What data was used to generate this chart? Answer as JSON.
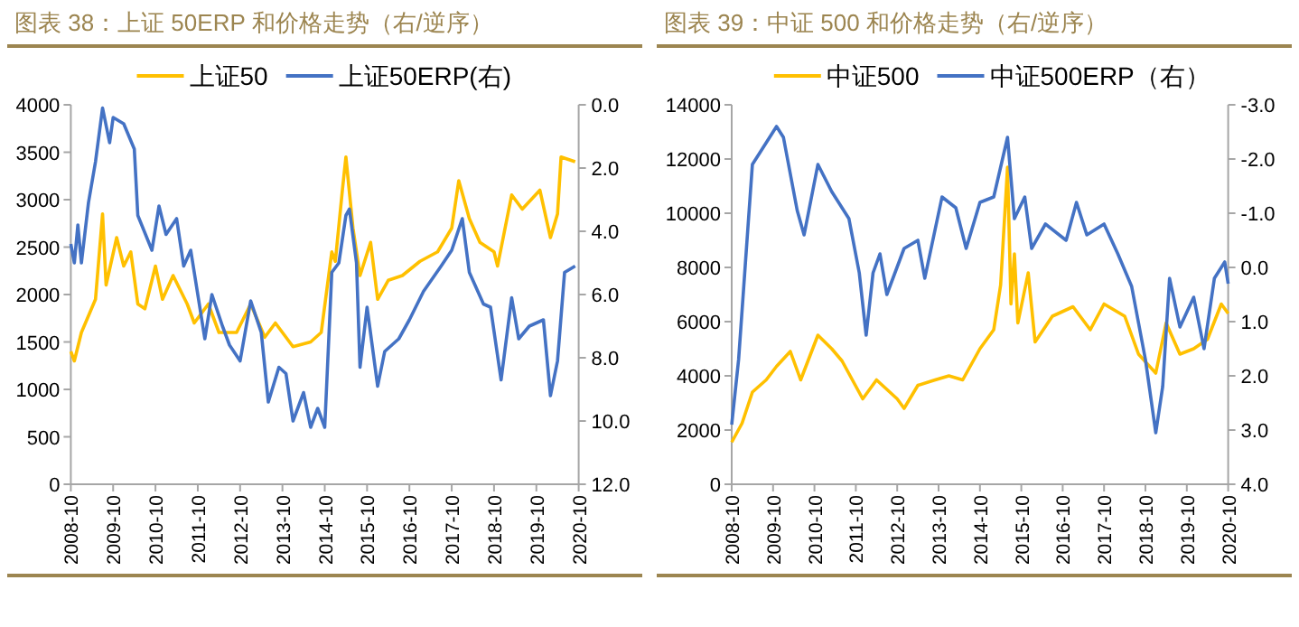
{
  "chart_data": [
    {
      "type": "line",
      "title": "图表 38：上证 50ERP 和价格走势（右/逆序）",
      "legend": "top",
      "grid": false,
      "xlim": [
        "2008-10",
        "2020-10"
      ],
      "xticks": [
        "2008-10",
        "2009-10",
        "2010-10",
        "2011-10",
        "2012-10",
        "2013-10",
        "2014-10",
        "2015-10",
        "2016-10",
        "2017-10",
        "2018-10",
        "2019-10",
        "2020-10"
      ],
      "ylim": [
        0,
        4000
      ],
      "yticks": [
        0,
        500,
        1000,
        1500,
        2000,
        2500,
        3000,
        3500,
        4000
      ],
      "y2lim": [
        12,
        0
      ],
      "y2ticks": [
        {
          "value": 0,
          "label": "0.0"
        },
        {
          "value": 2,
          "label": "2.0"
        },
        {
          "value": 4,
          "label": "4.0"
        },
        {
          "value": 6,
          "label": "6.0"
        },
        {
          "value": 8,
          "label": "8.0"
        },
        {
          "value": 10,
          "label": "10.0"
        },
        {
          "value": 12,
          "label": "12.0"
        }
      ],
      "series": [
        {
          "name": "上证50",
          "color": "#ffc000",
          "x": [
            "2008-10",
            "2008-11",
            "2009-01",
            "2009-05",
            "2009-07",
            "2009-08",
            "2009-11",
            "2010-01",
            "2010-03",
            "2010-05",
            "2010-07",
            "2010-10",
            "2010-12",
            "2011-03",
            "2011-07",
            "2011-09",
            "2012-01",
            "2012-04",
            "2012-09",
            "2013-01",
            "2013-05",
            "2013-08",
            "2014-01",
            "2014-06",
            "2014-09",
            "2014-12",
            "2015-01",
            "2015-03",
            "2015-04",
            "2015-06",
            "2015-08",
            "2015-11",
            "2016-01",
            "2016-04",
            "2016-08",
            "2017-01",
            "2017-06",
            "2017-10",
            "2017-12",
            "2018-03",
            "2018-06",
            "2018-10",
            "2018-11",
            "2019-03",
            "2019-06",
            "2019-11",
            "2020-02",
            "2020-04",
            "2020-05",
            "2020-09"
          ],
          "values": [
            1400,
            1300,
            1600,
            1950,
            2850,
            2100,
            2600,
            2300,
            2450,
            1900,
            1850,
            2300,
            1950,
            2200,
            1900,
            1700,
            1900,
            1600,
            1600,
            1900,
            1550,
            1700,
            1450,
            1500,
            1600,
            2450,
            2350,
            3100,
            3450,
            2700,
            2200,
            2550,
            1950,
            2150,
            2200,
            2350,
            2450,
            2700,
            3200,
            2800,
            2550,
            2450,
            2300,
            3050,
            2900,
            3100,
            2600,
            2850,
            3450,
            3400
          ]
        },
        {
          "name": "上证50ERP(右)",
          "color": "#4472c4",
          "axis": "y2",
          "x": [
            "2008-10",
            "2008-11",
            "2008-12",
            "2009-01",
            "2009-03",
            "2009-05",
            "2009-07",
            "2009-09",
            "2009-10",
            "2010-01",
            "2010-04",
            "2010-05",
            "2010-09",
            "2010-11",
            "2011-01",
            "2011-04",
            "2011-06",
            "2011-08",
            "2011-12",
            "2012-02",
            "2012-05",
            "2012-07",
            "2012-10",
            "2013-01",
            "2013-04",
            "2013-06",
            "2013-09",
            "2013-11",
            "2014-01",
            "2014-04",
            "2014-06",
            "2014-08",
            "2014-10",
            "2014-12",
            "2015-02",
            "2015-04",
            "2015-05",
            "2015-07",
            "2015-08",
            "2015-10",
            "2016-01",
            "2016-03",
            "2016-07",
            "2016-10",
            "2017-02",
            "2017-07",
            "2017-10",
            "2018-01",
            "2018-03",
            "2018-07",
            "2018-09",
            "2018-12",
            "2019-03",
            "2019-05",
            "2019-08",
            "2019-12",
            "2020-02",
            "2020-04",
            "2020-06",
            "2020-09"
          ],
          "values": [
            4.4,
            5.0,
            3.8,
            5.0,
            3.1,
            1.8,
            0.1,
            1.2,
            0.4,
            0.6,
            1.4,
            3.5,
            4.6,
            3.2,
            4.1,
            3.6,
            5.1,
            4.6,
            7.4,
            6.0,
            7.0,
            7.6,
            8.1,
            6.2,
            7.2,
            9.4,
            8.3,
            8.5,
            10.0,
            9.1,
            10.2,
            9.6,
            10.2,
            5.3,
            5.0,
            3.5,
            3.3,
            5.0,
            8.3,
            6.4,
            8.9,
            7.8,
            7.4,
            6.8,
            5.9,
            5.1,
            4.6,
            3.6,
            5.3,
            6.3,
            6.4,
            8.7,
            6.1,
            7.4,
            7.0,
            6.8,
            9.2,
            8.1,
            5.3,
            5.1
          ]
        }
      ]
    },
    {
      "type": "line",
      "title": "图表 39：中证 500 和价格走势（右/逆序）",
      "legend": "top",
      "grid": false,
      "xlim": [
        "2008-10",
        "2020-10"
      ],
      "xticks": [
        "2008-10",
        "2009-10",
        "2010-10",
        "2011-10",
        "2012-10",
        "2013-10",
        "2014-10",
        "2015-10",
        "2016-10",
        "2017-10",
        "2018-10",
        "2019-10",
        "2020-10"
      ],
      "ylim": [
        0,
        14000
      ],
      "yticks": [
        0,
        2000,
        4000,
        6000,
        8000,
        10000,
        12000,
        14000
      ],
      "y2lim": [
        4,
        -3
      ],
      "y2ticks": [
        {
          "value": -3,
          "label": "-3.0"
        },
        {
          "value": -2,
          "label": "-2.0"
        },
        {
          "value": -1,
          "label": "-1.0"
        },
        {
          "value": 0,
          "label": "0.0"
        },
        {
          "value": 1,
          "label": "1.0"
        },
        {
          "value": 2,
          "label": "2.0"
        },
        {
          "value": 3,
          "label": "3.0"
        },
        {
          "value": 4,
          "label": "4.0"
        }
      ],
      "series": [
        {
          "name": "中证500",
          "color": "#ffc000",
          "x": [
            "2008-10",
            "2009-01",
            "2009-04",
            "2009-08",
            "2009-11",
            "2010-03",
            "2010-06",
            "2010-11",
            "2011-03",
            "2011-06",
            "2011-12",
            "2012-04",
            "2012-10",
            "2012-12",
            "2013-04",
            "2013-09",
            "2014-01",
            "2014-05",
            "2014-10",
            "2015-02",
            "2015-04",
            "2015-06",
            "2015-07",
            "2015-08",
            "2015-09",
            "2015-12",
            "2016-02",
            "2016-07",
            "2017-01",
            "2017-06",
            "2017-10",
            "2018-04",
            "2018-08",
            "2019-01",
            "2019-04",
            "2019-08",
            "2019-12",
            "2020-04",
            "2020-08",
            "2020-10"
          ],
          "values": [
            1550,
            2250,
            3400,
            3850,
            4350,
            4900,
            3850,
            5500,
            5000,
            4550,
            3150,
            3850,
            3150,
            2800,
            3650,
            3850,
            4000,
            3850,
            5000,
            5700,
            7350,
            11700,
            6650,
            8500,
            5950,
            7800,
            5250,
            6200,
            6550,
            5700,
            6650,
            6200,
            4800,
            4100,
            5950,
            4800,
            5000,
            5350,
            6650,
            6300
          ]
        },
        {
          "name": "中证500ERP（右）",
          "color": "#4472c4",
          "axis": "y2",
          "x": [
            "2008-10",
            "2008-12",
            "2009-02",
            "2009-04",
            "2009-07",
            "2009-11",
            "2010-01",
            "2010-05",
            "2010-07",
            "2010-11",
            "2011-03",
            "2011-08",
            "2011-11",
            "2012-01",
            "2012-03",
            "2012-05",
            "2012-07",
            "2012-12",
            "2013-04",
            "2013-06",
            "2013-11",
            "2014-03",
            "2014-06",
            "2014-10",
            "2015-02",
            "2015-06",
            "2015-08",
            "2015-11",
            "2016-01",
            "2016-05",
            "2016-11",
            "2017-02",
            "2017-05",
            "2017-10",
            "2018-02",
            "2018-06",
            "2018-10",
            "2019-01",
            "2019-03",
            "2019-05",
            "2019-08",
            "2019-12",
            "2020-03",
            "2020-06",
            "2020-09",
            "2020-10"
          ],
          "values": [
            2.9,
            1.7,
            -0.1,
            -1.9,
            -2.2,
            -2.6,
            -2.4,
            -1.05,
            -0.6,
            -1.9,
            -1.4,
            -0.9,
            0.1,
            1.25,
            0.1,
            -0.25,
            0.5,
            -0.35,
            -0.5,
            0.2,
            -1.3,
            -1.1,
            -0.35,
            -1.2,
            -1.3,
            -2.4,
            -0.9,
            -1.3,
            -0.35,
            -0.8,
            -0.5,
            -1.2,
            -0.6,
            -0.8,
            -0.25,
            0.35,
            1.7,
            3.05,
            2.2,
            0.2,
            1.1,
            0.55,
            1.5,
            0.2,
            -0.1,
            0.3
          ]
        }
      ]
    }
  ]
}
